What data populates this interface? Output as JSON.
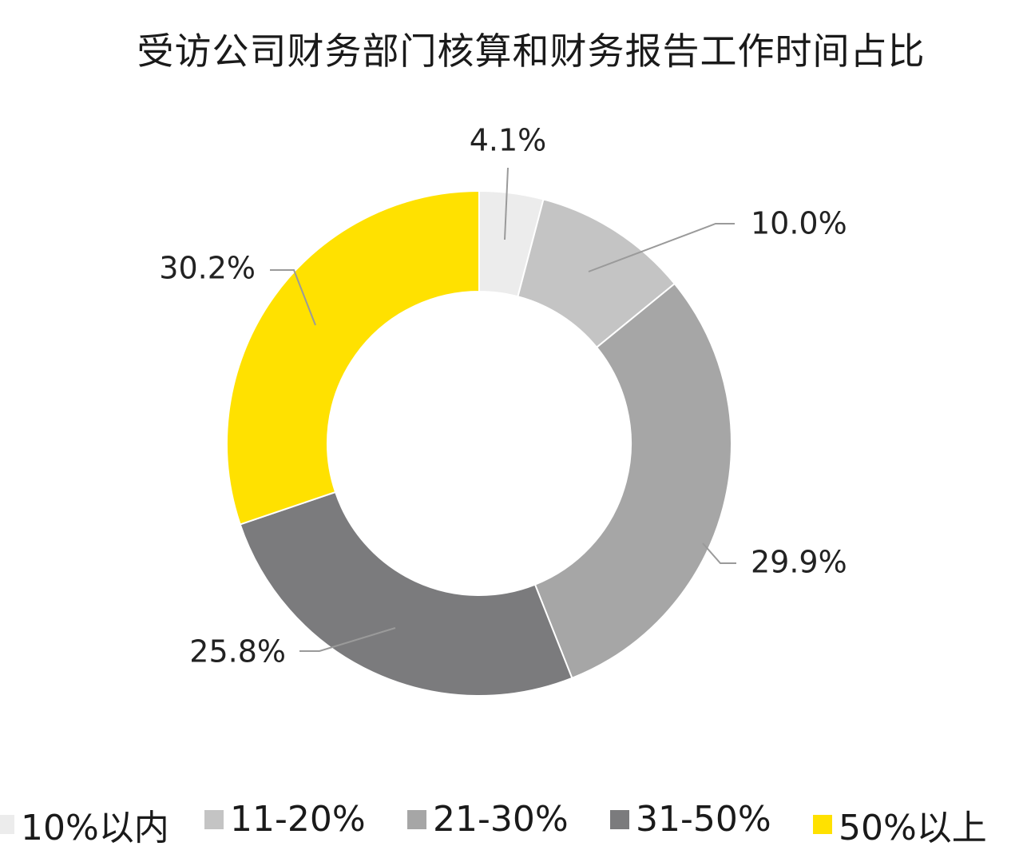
{
  "chart_data": {
    "type": "pie",
    "title": "受访公司财务部门核算和财务报告工作时间占比",
    "categories": [
      "10%以内",
      "11-20%",
      "21-30%",
      "31-50%",
      "50%以上"
    ],
    "values": [
      4.1,
      10.0,
      29.9,
      25.8,
      30.2
    ],
    "labels": [
      "4.1%",
      "10.0%",
      "29.9%",
      "25.8%",
      "30.2%"
    ],
    "colors": [
      "#ececec",
      "#c4c4c4",
      "#a6a6a6",
      "#7b7b7d",
      "#ffe100"
    ],
    "donut": true,
    "legend_position": "bottom"
  }
}
